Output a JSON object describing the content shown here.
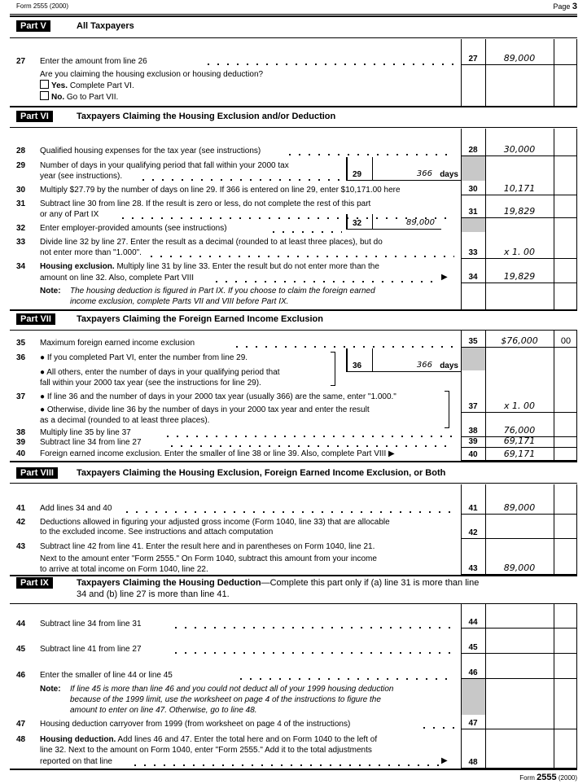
{
  "header": {
    "form": "Form 2555 (2000)",
    "page_label": "Page",
    "page_num": "3"
  },
  "footer": {
    "form_word": "Form",
    "form_num": "2555",
    "year": "(2000)"
  },
  "parts": [
    {
      "label": "Part V",
      "title": "All Taxpayers"
    },
    {
      "label": "Part VI",
      "title": "Taxpayers Claiming the Housing Exclusion and/or Deduction"
    },
    {
      "label": "Part VII",
      "title": "Taxpayers Claiming the Foreign Earned Income Exclusion"
    },
    {
      "label": "Part VIII",
      "title": "Taxpayers Claiming the Housing Exclusion, Foreign Earned Income Exclusion, or Both"
    },
    {
      "label": "Part IX",
      "title": "Taxpayers Claiming the Housing Deduction",
      "title_rest": "—Complete this part only if (a) line 31 is more than line",
      "title_line2": "34 and (b) line 27 is more than line 41."
    }
  ],
  "question": {
    "text": "Are you claiming the housing exclusion or housing deduction?",
    "yes_label": "Yes.",
    "yes_text": "Complete Part VI.",
    "no_label": "No.",
    "no_text": "Go to Part VII."
  },
  "lines": [
    {
      "num": "27",
      "text": [
        "Enter the amount from line 26"
      ]
    },
    {
      "num": "28",
      "text": [
        "Qualified housing expenses for the tax year (see instructions)"
      ]
    },
    {
      "num": "29",
      "text": [
        "Number of days in your qualifying period that fall within your 2000 tax",
        "year (see instructions)."
      ]
    },
    {
      "num": "30",
      "text": [
        "Multiply $27.79 by the number of days on line 29. If 366 is entered on line 29, enter $10,171.00 here"
      ]
    },
    {
      "num": "31",
      "text": [
        "Subtract line 30 from line 28. If the result is zero or less, do not complete the rest of this part",
        "or any of Part IX"
      ]
    },
    {
      "num": "32",
      "text": [
        "Enter employer-provided amounts (see instructions)"
      ]
    },
    {
      "num": "33",
      "text": [
        "Divide line 32 by line 27. Enter the result as a decimal (rounded to at least three places), but do",
        "not enter more than \"1.000\"."
      ]
    },
    {
      "num": "34",
      "bold": "Housing exclusion.",
      "text": [
        " Multiply line 31 by line 33. Enter the result but do not enter more than the",
        "amount on line 32. Also, complete Part VIII"
      ]
    },
    {
      "num": "35",
      "text": [
        "Maximum foreign earned income exclusion"
      ]
    },
    {
      "num": "36",
      "text": [
        "● If you completed Part VI, enter the number from line 29.",
        "● All others, enter the number of days in your qualifying period that",
        "   fall within your 2000 tax year (see the instructions for line 29)."
      ]
    },
    {
      "num": "37",
      "text": [
        "● If line 36 and the number of days in your 2000 tax year (usually 366) are the same, enter \"1.000.\"",
        "● Otherwise, divide line 36 by the number of days in your 2000 tax year and enter the result",
        "   as a decimal (rounded to at least three places)."
      ]
    },
    {
      "num": "38",
      "text": [
        "Multiply line 35 by line 37"
      ]
    },
    {
      "num": "39",
      "text": [
        "Subtract line 34 from line 27"
      ]
    },
    {
      "num": "40",
      "text": [
        "Foreign earned income exclusion. Enter the smaller of line 38 or line 39. Also, complete Part VIII ▶"
      ]
    },
    {
      "num": "41",
      "text": [
        "Add lines 34 and 40"
      ]
    },
    {
      "num": "42",
      "text": [
        "Deductions allowed in figuring your adjusted gross income (Form 1040, line 33) that are allocable",
        "to the excluded income. See instructions and attach computation"
      ]
    },
    {
      "num": "43",
      "text": [
        "Subtract line 42 from line 41. Enter the result here and in parentheses on Form 1040, line 21.",
        "Next to the amount enter \"Form 2555.\" On Form 1040, subtract this amount from your income",
        "to arrive at total income on Form 1040, line 22."
      ]
    },
    {
      "num": "44",
      "text": [
        "Subtract line 34 from line 31"
      ]
    },
    {
      "num": "45",
      "text": [
        "Subtract line 41 from line 27"
      ]
    },
    {
      "num": "46",
      "text": [
        "Enter the smaller of line 44 or line 45"
      ]
    },
    {
      "num": "47",
      "text": [
        "Housing deduction carryover from 1999 (from worksheet on page 4 of the instructions)"
      ]
    },
    {
      "num": "48",
      "bold": "Housing deduction.",
      "text": [
        " Add lines 46 and 47. Enter the total here and on Form 1040 to the left of",
        "line 32. Next to the amount on Form 1040, enter \"Form 2555.\" Add it to the total adjustments",
        "reported on that line"
      ]
    }
  ],
  "notes": {
    "n34": {
      "label": "Note:",
      "lines": [
        "The housing deduction is figured in Part IX. If you choose to claim the foreign earned",
        "income exclusion, complete Parts VII and VIII before Part IX."
      ]
    },
    "n46": {
      "label": "Note:",
      "lines": [
        "If line 45 is more than line 46 and you could not deduct all of your 1999 housing deduction",
        "because of the 1999 limit, use the worksheet on page 4 of the instructions to figure the",
        "amount to enter on line 47. Otherwise, go to line 48."
      ]
    }
  },
  "inner": {
    "l29": {
      "label": "29",
      "value": "366",
      "unit": "days"
    },
    "l32": {
      "label": "32",
      "value": "89,000"
    },
    "l36": {
      "label": "36",
      "value": "366",
      "unit": "days"
    }
  },
  "cells": [
    {
      "label": "27",
      "amount": "89,000"
    },
    {
      "label": "28",
      "amount": "30,000"
    },
    {
      "label": "30",
      "amount": "10,171"
    },
    {
      "label": "31",
      "amount": "19,829"
    },
    {
      "label": "33",
      "amount": "x 1. 00"
    },
    {
      "label": "34",
      "amount": "19,829"
    },
    {
      "label": "35",
      "amount": "$76,000",
      "cents": "00"
    },
    {
      "label": "37",
      "amount": "x 1. 00"
    },
    {
      "label": "38",
      "amount": "76,000"
    },
    {
      "label": "39",
      "amount": "69,171"
    },
    {
      "label": "40",
      "amount": "69,171"
    },
    {
      "label": "41",
      "amount": "89,000"
    },
    {
      "label": "42",
      "amount": ""
    },
    {
      "label": "43",
      "amount": "89,000"
    },
    {
      "label": "44",
      "amount": ""
    },
    {
      "label": "45",
      "amount": ""
    },
    {
      "label": "46",
      "amount": ""
    },
    {
      "label": "47",
      "amount": ""
    },
    {
      "label": "48",
      "amount": ""
    }
  ]
}
